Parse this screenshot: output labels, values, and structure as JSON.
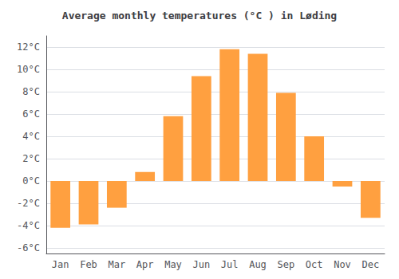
{
  "chart_data": {
    "type": "bar",
    "title": "Average monthly temperatures (°C ) in Løding",
    "categories": [
      "Jan",
      "Feb",
      "Mar",
      "Apr",
      "May",
      "Jun",
      "Jul",
      "Aug",
      "Sep",
      "Oct",
      "Nov",
      "Dec"
    ],
    "values": [
      -4.2,
      -3.9,
      -2.4,
      0.8,
      5.8,
      9.4,
      11.8,
      11.4,
      7.9,
      4.0,
      -0.5,
      -3.3
    ],
    "color": "#FFA040",
    "ylim": [
      -6.5,
      13.0
    ],
    "yticks": [
      {
        "value": -6,
        "label": "-6°C"
      },
      {
        "value": -4,
        "label": "-4°C"
      },
      {
        "value": -2,
        "label": "-2°C"
      },
      {
        "value": 0,
        "label": "0°C"
      },
      {
        "value": 2,
        "label": "2°C"
      },
      {
        "value": 4,
        "label": "4°C"
      },
      {
        "value": 6,
        "label": "6°C"
      },
      {
        "value": 8,
        "label": "8°C"
      },
      {
        "value": 10,
        "label": "10°C"
      },
      {
        "value": 12,
        "label": "12°C"
      }
    ],
    "grid": true
  }
}
